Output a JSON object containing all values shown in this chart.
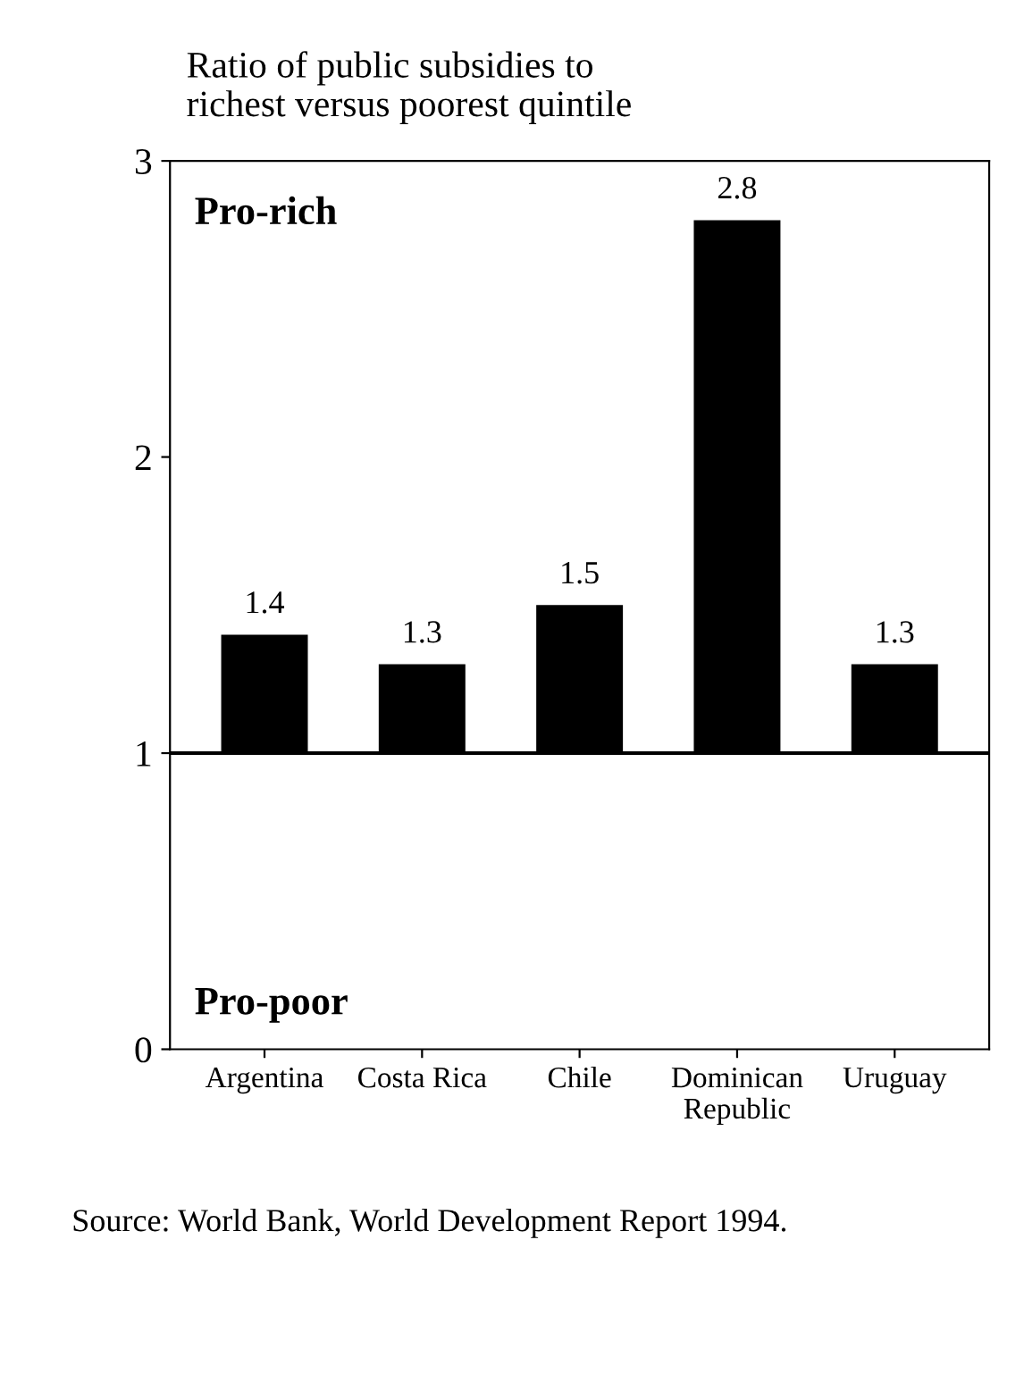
{
  "chart_data": {
    "type": "bar",
    "title": "Ratio of public subsidies to\nrichest versus poorest quintile",
    "categories": [
      "Argentina",
      "Costa Rica",
      "Chile",
      "Dominican\nRepublic",
      "Uruguay"
    ],
    "values": [
      0.4,
      0.3,
      0.5,
      1.8,
      0.3
    ],
    "base": [
      1,
      1,
      1,
      1,
      1
    ],
    "value_labels": [
      "1.4",
      "1.3",
      "1.5",
      "2.8",
      "1.3"
    ],
    "color": "#000000",
    "ylim": [
      0,
      3
    ],
    "yticks": [
      0,
      1,
      2,
      3
    ],
    "ref_lines": [
      {
        "axis": "y",
        "value": 1,
        "color": "#000000"
      }
    ],
    "annotations": [
      "Pro-rich",
      "Pro-poor",
      "Source: World Bank, World Development Report 1994."
    ],
    "grid": false,
    "legend": false
  }
}
